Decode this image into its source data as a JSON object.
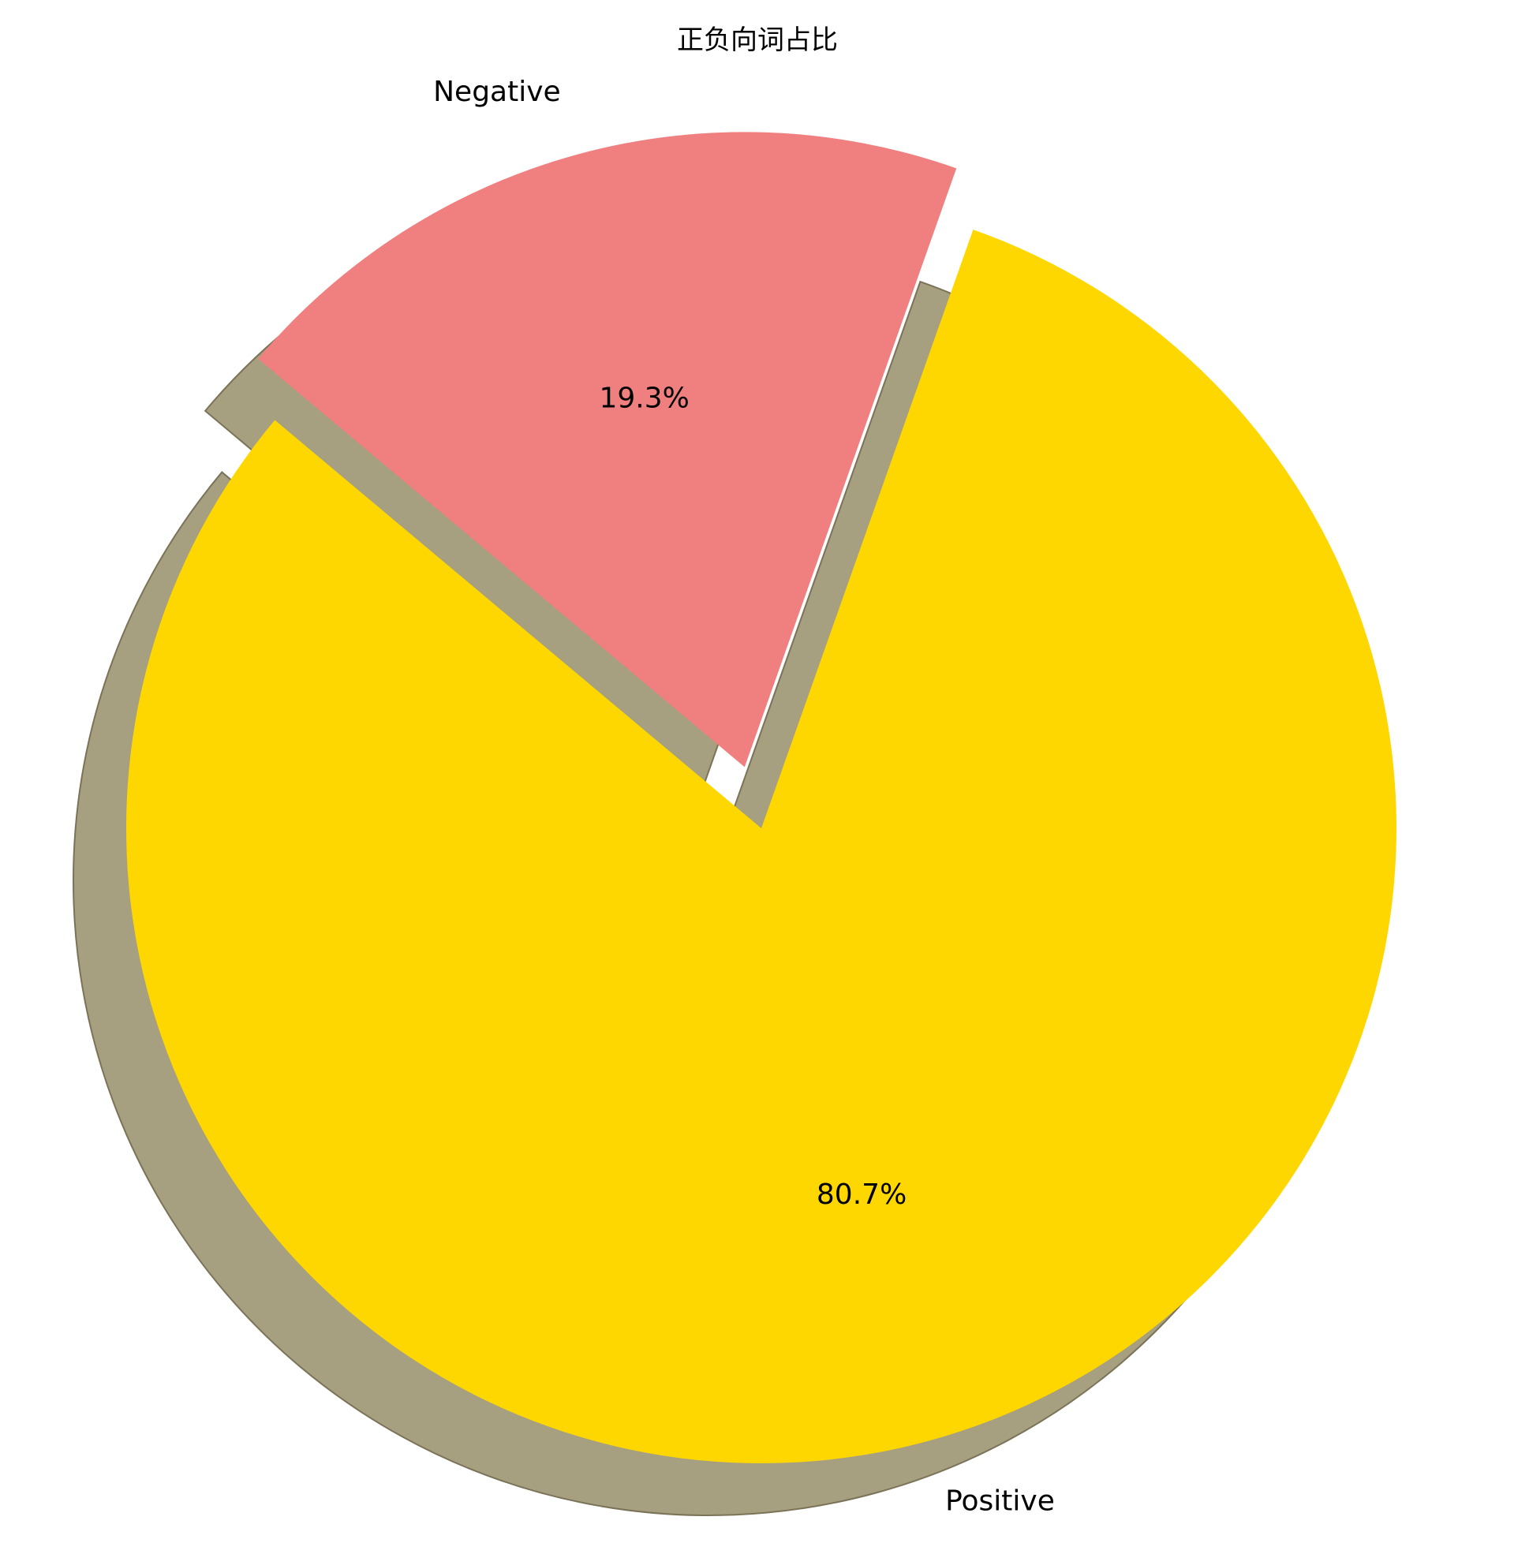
{
  "chart_data": {
    "type": "pie",
    "title": "正负向词占比",
    "slices": [
      {
        "label": "Positive",
        "value": 80.7,
        "pct_label": "80.7%",
        "color": "#FFD700",
        "explode": 0
      },
      {
        "label": "Negative",
        "value": 19.3,
        "pct_label": "19.3%",
        "color": "#F08080",
        "explode": 0.1
      }
    ],
    "start_angle": 140,
    "shadow": true,
    "shadow_color": "#A69F80"
  }
}
